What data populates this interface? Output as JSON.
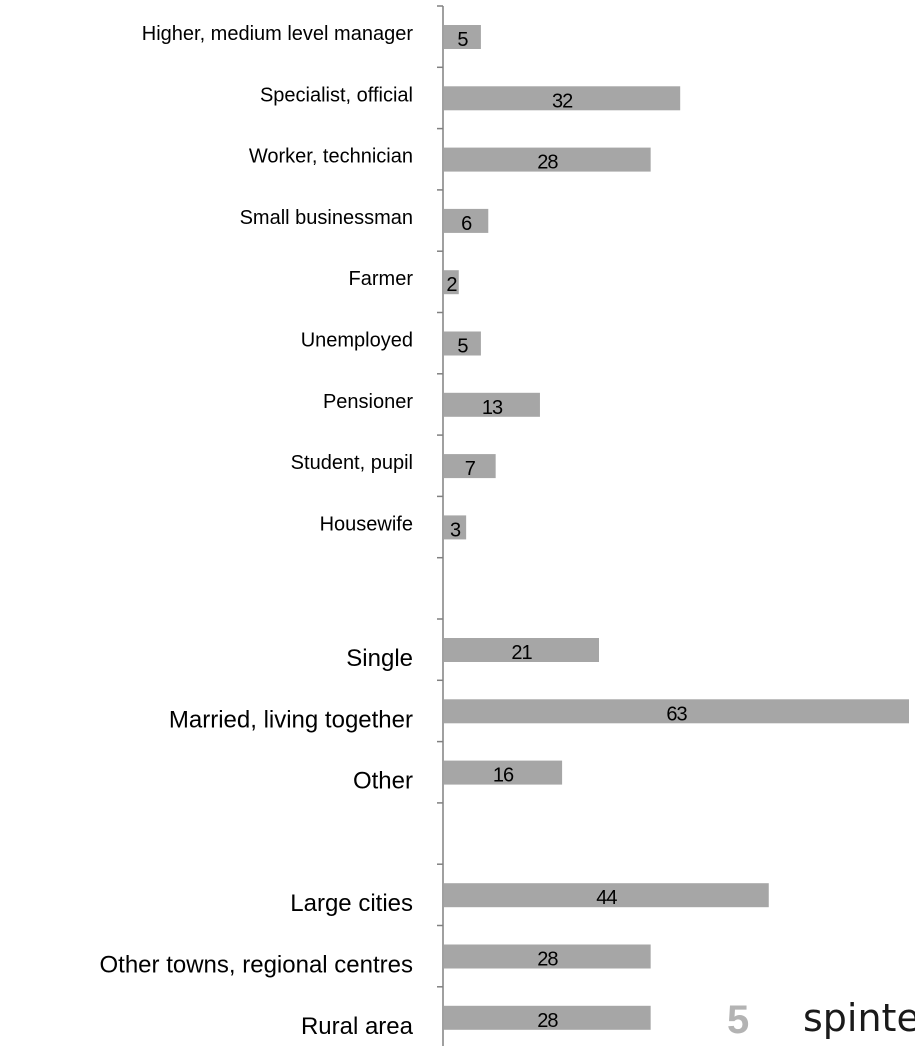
{
  "chart_data": {
    "type": "bar",
    "orientation": "horizontal",
    "categories": [
      "Higher, medium level manager",
      "Specialist, official",
      "Worker, technician",
      "Small businessman",
      "Farmer",
      "Unemployed",
      "Pensioner",
      "Student, pupil",
      "Housewife",
      "",
      "Single",
      "Married, living together",
      "Other",
      "",
      "Large cities",
      "Other towns, regional centres",
      "Rural area"
    ],
    "values": [
      5,
      32,
      28,
      6,
      2,
      5,
      13,
      7,
      3,
      null,
      21,
      63,
      16,
      null,
      44,
      28,
      28
    ],
    "data_labels": true,
    "xlim": [
      0,
      63
    ],
    "bar_color": "#a6a6a6",
    "axis_color": "#808080",
    "grid": false,
    "legend": "none"
  },
  "footer": {
    "slide_number": "5",
    "slide_number_color": "#b3b3b3",
    "brand": "spinte"
  }
}
